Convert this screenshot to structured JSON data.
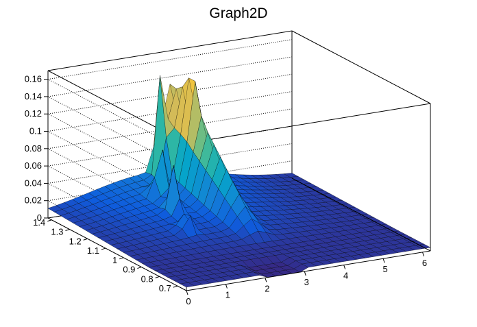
{
  "chart_data": {
    "type": "surface",
    "title": "Graph2D",
    "x_axis": {
      "label": "",
      "range": [
        0,
        6.2
      ],
      "ticks": [
        "0",
        "1",
        "2",
        "3",
        "4",
        "5",
        "6"
      ]
    },
    "y_axis": {
      "label": "",
      "range": [
        0.65,
        1.42
      ],
      "ticks": [
        "0.7",
        "0.8",
        "0.9",
        "1",
        "1.1",
        "1.2",
        "1.3",
        "1.4"
      ]
    },
    "z_axis": {
      "label": "",
      "range": [
        0,
        0.17
      ],
      "ticks": [
        "0",
        "0.02",
        "0.04",
        "0.06",
        "0.08",
        "0.1",
        "0.12",
        "0.14",
        "0.16"
      ]
    },
    "grid": true,
    "colormap": [
      "#352a87",
      "#0f5cdd",
      "#1481d6",
      "#06a4ca",
      "#2eb7a4",
      "#87bf77",
      "#d1bb59",
      "#fec832",
      "#f9fb0e"
    ],
    "z_max": 0.15,
    "features": [
      {
        "x": 1.8,
        "y": 1.05,
        "z": 0.03
      },
      {
        "x": 2.05,
        "y": 1.17,
        "z": 0.055
      },
      {
        "x": 2.2,
        "y": 1.28,
        "z": 0.075
      },
      {
        "x": 2.7,
        "y": 1.38,
        "z": 0.11
      },
      {
        "x": 3.15,
        "y": 1.3,
        "z": 0.15
      }
    ]
  }
}
